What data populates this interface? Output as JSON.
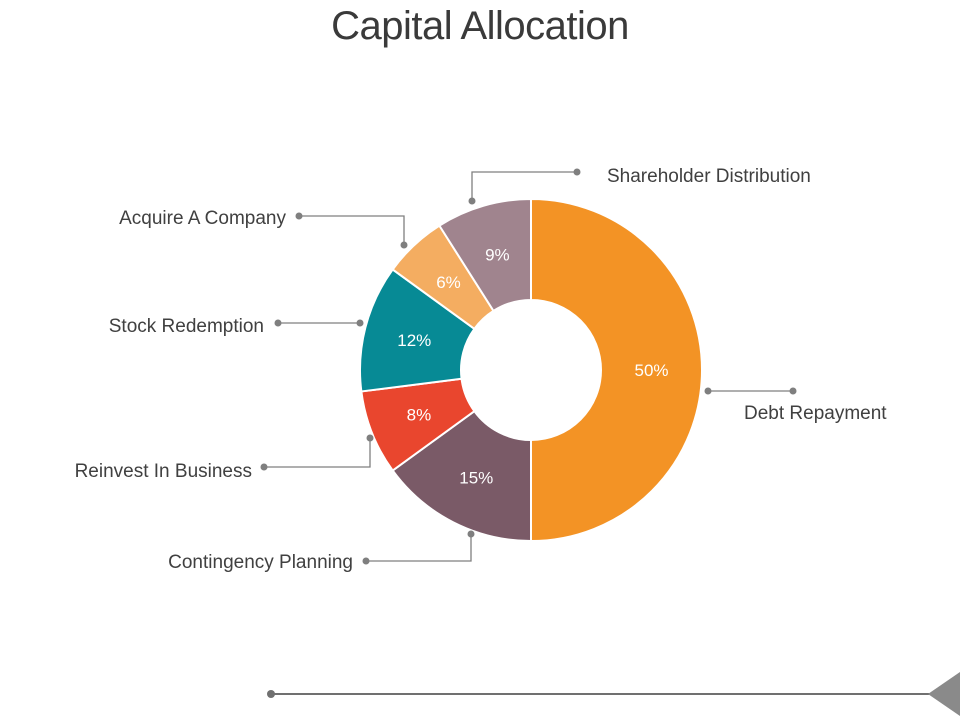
{
  "title": "Capital Allocation",
  "chart_data": {
    "type": "pie",
    "variant": "donut",
    "title": "Capital Allocation",
    "unit": "%",
    "slices": [
      {
        "label": "Debt Repayment",
        "value": 50,
        "value_label": "50%",
        "color": "#f39325"
      },
      {
        "label": "Contingency Planning",
        "value": 15,
        "value_label": "15%",
        "color": "#7a5a67"
      },
      {
        "label": "Reinvest In Business",
        "value": 8,
        "value_label": "8%",
        "color": "#e9462e"
      },
      {
        "label": "Stock Redemption",
        "value": 12,
        "value_label": "12%",
        "color": "#078a95"
      },
      {
        "label": "Acquire A Company",
        "value": 6,
        "value_label": "6%",
        "color": "#f4ad61"
      },
      {
        "label": "Shareholder Distribution",
        "value": 9,
        "value_label": "9%",
        "color": "#a0848e"
      }
    ]
  },
  "colors": {
    "leader": "#7f7f7f",
    "bottom_rule": "#707070"
  }
}
